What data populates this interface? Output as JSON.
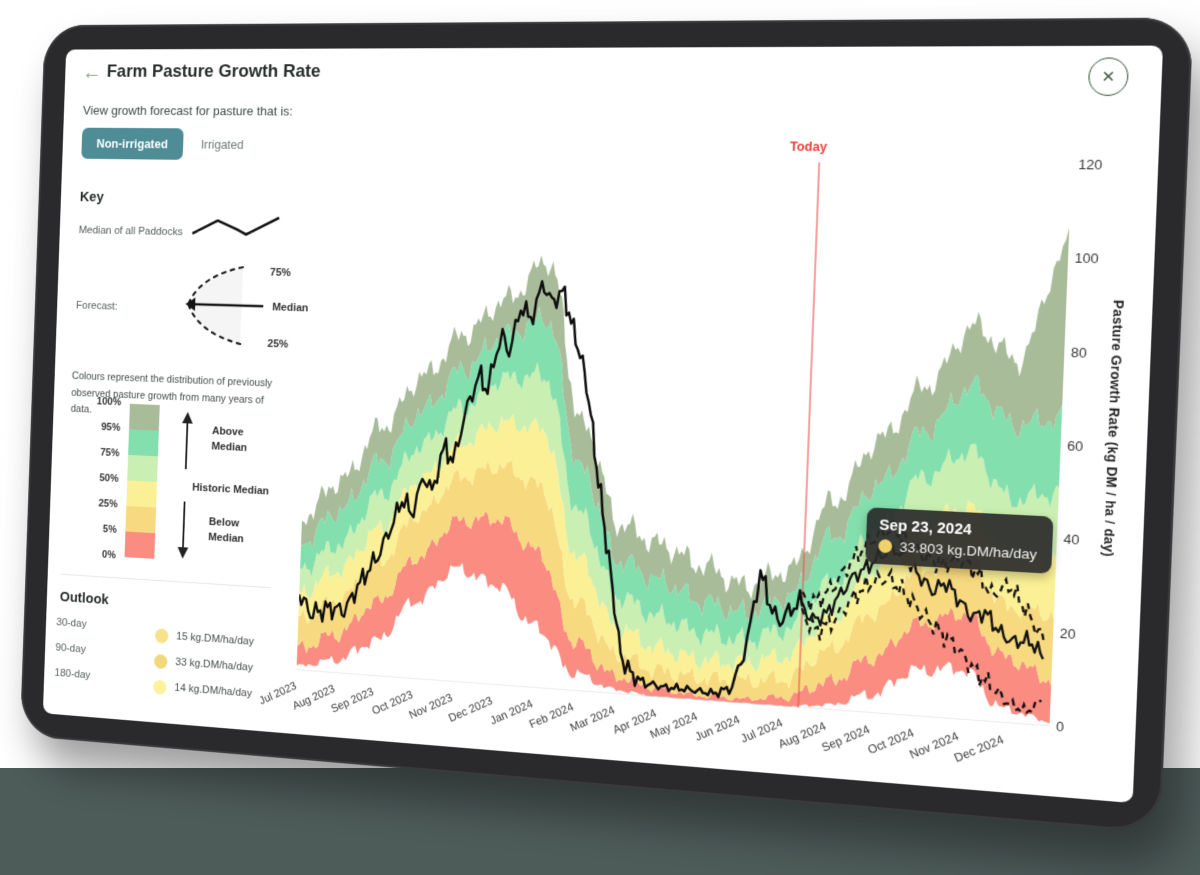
{
  "header": {
    "title": "Farm Pasture Growth Rate"
  },
  "subtitle": "View growth forecast for pasture that is:",
  "tabs": [
    {
      "label": "Non-irrigated"
    },
    {
      "label": "Irrigated"
    }
  ],
  "key": {
    "heading": "Key",
    "median_label": "Median of all Paddocks",
    "forecast_label": "Forecast:",
    "forecast_upper": "75%",
    "forecast_median": "Median",
    "forecast_lower": "25%",
    "colours_note": "Colours represent the distribution of previously observed pasture growth from many years of data.",
    "scale_labels": [
      "100%",
      "95%",
      "75%",
      "50%",
      "25%",
      "5%",
      "0%"
    ],
    "scale_colors": [
      "#a9bc99",
      "#84dfae",
      "#c9efb2",
      "#fbf096",
      "#f7d97f",
      "#fa8c82"
    ],
    "above": "Above Median",
    "historic": "Historic Median",
    "below": "Below Median"
  },
  "outlook": {
    "heading": "Outlook",
    "rows": [
      {
        "label": "30-day",
        "value": "15 kg.DM/ha/day",
        "dot": "#f6e289"
      },
      {
        "label": "90-day",
        "value": "33 kg.DM/ha/day",
        "dot": "#f2d87c"
      },
      {
        "label": "180-day",
        "value": "14 kg.DM/ha/day",
        "dot": "#fbf29b"
      }
    ]
  },
  "today_label": "Today",
  "tooltip": {
    "date": "Sep 23, 2024",
    "value": "33.803 kg.DM/ha/day",
    "dot": "#f2d169"
  },
  "chart_data": {
    "type": "area",
    "ylabel": "Pasture Growth Rate (kg DM / ha / day)",
    "ylim": [
      0,
      120
    ],
    "yticks": [
      0,
      20,
      40,
      60,
      80,
      100,
      120
    ],
    "x_labels": [
      "Jul 2023",
      "Aug 2023",
      "Sep 2023",
      "Oct 2023",
      "Nov 2023",
      "Dec 2023",
      "Jan 2024",
      "Feb 2024",
      "Mar 2024",
      "Apr 2024",
      "May 2024",
      "Jun 2024",
      "Jul 2024",
      "Aug 2024",
      "Sep 2024",
      "Oct 2024",
      "Nov 2024",
      "Dec 2024"
    ],
    "x_index_range": [
      0,
      18
    ],
    "today_x": 12.35,
    "today_color": "#f05252",
    "percentiles": {
      "p0": [
        1,
        3,
        8,
        18,
        26,
        23,
        14,
        4,
        1,
        0,
        0,
        0,
        0,
        1,
        4,
        10,
        11,
        3,
        1
      ],
      "p5": [
        5,
        9,
        17,
        28,
        37,
        38,
        31,
        11,
        4,
        2,
        1,
        1,
        2,
        6,
        12,
        20,
        23,
        14,
        10
      ],
      "p25": [
        12,
        17,
        26,
        38,
        47,
        50,
        46,
        20,
        9,
        6,
        5,
        5,
        6,
        13,
        22,
        32,
        35,
        25,
        24
      ],
      "p50": [
        18,
        24,
        34,
        46,
        55,
        60,
        59,
        30,
        15,
        11,
        9,
        9,
        11,
        20,
        31,
        42,
        46,
        36,
        36
      ],
      "p75": [
        24,
        30,
        42,
        54,
        63,
        70,
        71,
        40,
        22,
        18,
        15,
        14,
        17,
        28,
        40,
        52,
        58,
        48,
        50
      ],
      "p95": [
        30,
        38,
        50,
        62,
        72,
        80,
        84,
        50,
        30,
        26,
        22,
        20,
        24,
        38,
        50,
        62,
        72,
        64,
        66
      ],
      "p100": [
        36,
        45,
        58,
        70,
        80,
        88,
        97,
        60,
        38,
        34,
        30,
        26,
        30,
        46,
        60,
        72,
        85,
        78,
        103
      ]
    },
    "bands": [
      {
        "lower": "p0",
        "upper": "p5",
        "color": "#fa8c82"
      },
      {
        "lower": "p5",
        "upper": "p25",
        "color": "#f7d97f"
      },
      {
        "lower": "p25",
        "upper": "p50",
        "color": "#fbf096"
      },
      {
        "lower": "p50",
        "upper": "p75",
        "color": "#c9efb2"
      },
      {
        "lower": "p75",
        "upper": "p95",
        "color": "#84dfae"
      },
      {
        "lower": "p95",
        "upper": "p100",
        "color": "#a9bc99"
      }
    ],
    "median_line": [
      [
        0,
        18
      ],
      [
        0.3,
        14
      ],
      [
        0.8,
        16
      ],
      [
        1.2,
        15
      ],
      [
        1.5,
        20
      ],
      [
        2,
        27
      ],
      [
        2.3,
        34
      ],
      [
        2.6,
        42
      ],
      [
        2.8,
        38
      ],
      [
        3.1,
        48
      ],
      [
        3.3,
        44
      ],
      [
        3.6,
        55
      ],
      [
        3.8,
        50
      ],
      [
        4.1,
        62
      ],
      [
        4.4,
        70
      ],
      [
        4.6,
        66
      ],
      [
        4.9,
        80
      ],
      [
        5.1,
        76
      ],
      [
        5.4,
        88
      ],
      [
        5.6,
        84
      ],
      [
        5.9,
        93
      ],
      [
        6.1,
        88
      ],
      [
        6.4,
        90
      ],
      [
        6.6,
        83
      ],
      [
        6.9,
        74
      ],
      [
        7.1,
        66
      ],
      [
        7.3,
        54
      ],
      [
        7.6,
        38
      ],
      [
        7.9,
        22
      ],
      [
        8.1,
        10
      ],
      [
        8.4,
        5
      ],
      [
        8.7,
        3
      ],
      [
        9.2,
        2
      ],
      [
        9.8,
        2
      ],
      [
        10.4,
        2
      ],
      [
        10.8,
        4
      ],
      [
        11.1,
        14
      ],
      [
        11.35,
        29
      ],
      [
        11.5,
        25
      ],
      [
        11.7,
        19
      ],
      [
        11.9,
        18
      ],
      [
        12.1,
        21
      ],
      [
        12.35,
        23
      ]
    ],
    "forecast_median": [
      [
        12.35,
        23
      ],
      [
        12.6,
        20
      ],
      [
        12.9,
        21
      ],
      [
        13.2,
        25
      ],
      [
        13.5,
        29
      ],
      [
        13.8,
        31
      ],
      [
        14.1,
        34
      ],
      [
        14.4,
        36
      ],
      [
        14.73,
        33.8
      ],
      [
        15,
        31
      ],
      [
        15.3,
        28
      ],
      [
        15.6,
        30
      ],
      [
        15.9,
        26
      ],
      [
        16.2,
        22
      ],
      [
        16.5,
        23
      ],
      [
        16.8,
        19
      ],
      [
        17.1,
        17
      ],
      [
        17.5,
        18
      ],
      [
        17.8,
        15
      ]
    ],
    "forecast_upper": [
      [
        12.35,
        24
      ],
      [
        12.7,
        23
      ],
      [
        13.1,
        27
      ],
      [
        13.5,
        33
      ],
      [
        13.9,
        38
      ],
      [
        14.3,
        41
      ],
      [
        14.7,
        39
      ],
      [
        15.1,
        35
      ],
      [
        15.5,
        33
      ],
      [
        15.9,
        34
      ],
      [
        16.3,
        31
      ],
      [
        16.6,
        27
      ],
      [
        17,
        30
      ],
      [
        17.4,
        25
      ],
      [
        17.8,
        19
      ]
    ],
    "forecast_lower": [
      [
        12.35,
        21
      ],
      [
        12.7,
        17
      ],
      [
        13.1,
        19
      ],
      [
        13.5,
        24
      ],
      [
        13.9,
        28
      ],
      [
        14.3,
        30
      ],
      [
        14.7,
        27
      ],
      [
        15.1,
        23
      ],
      [
        15.5,
        19
      ],
      [
        15.9,
        15
      ],
      [
        16.3,
        10
      ],
      [
        16.7,
        7
      ],
      [
        17.1,
        4
      ],
      [
        17.5,
        3
      ],
      [
        17.8,
        6
      ]
    ],
    "marker": {
      "x": 14.73,
      "y": 33.8,
      "color": "#f2d169"
    }
  }
}
